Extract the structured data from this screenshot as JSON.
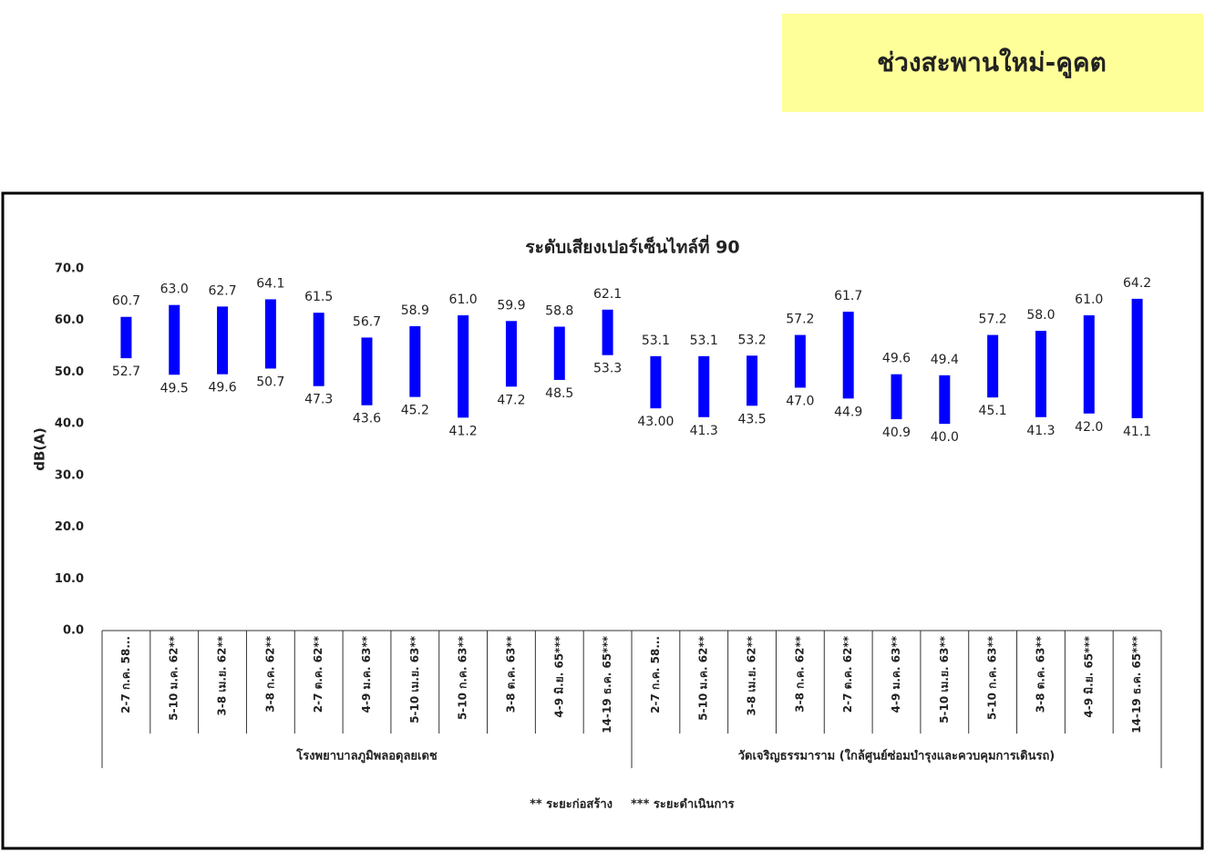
{
  "header": {
    "title": "ช่วงสะพานใหม่-คูคต"
  },
  "chart_data": {
    "type": "range_bar",
    "title": "ระดับเสียงเปอร์เซ็นไทล์ที่ 90",
    "y_label": "dB(A)",
    "categories": [
      "2-7 ก.ค. 58...",
      "5-10 ม.ค. 62**",
      "3-8 เม.ย. 62**",
      "3-8 ก.ค. 62**",
      "2-7 ต.ค. 62**",
      "4-9 ม.ค. 63**",
      "5-10 เม.ย. 63**",
      "5-10 ก.ค. 63**",
      "3-8 ต.ค. 63**",
      "4-9 มิ.ย. 65***",
      "14-19 ธ.ค. 65***",
      "2-7 ก.ค. 58...",
      "5-10 ม.ค. 62**",
      "3-8 เม.ย. 62**",
      "3-8 ก.ค. 62**",
      "2-7 ต.ค. 62**",
      "4-9 ม.ค. 63**",
      "5-10 เม.ย. 63**",
      "5-10 ก.ค. 63**",
      "3-8 ต.ค. 63**",
      "4-9 มิ.ย. 65***",
      "14-19 ธ.ค. 65***"
    ],
    "category_groups": [
      "โรงพยาบาลภูมิพลอดุลยเดช",
      "โรงพยาบาลภูมิพลอดุลยเดช",
      "โรงพยาบาลภูมิพลอดุลยเดช",
      "โรงพยาบาลภูมิพลอดุลยเดช",
      "โรงพยาบาลภูมิพลอดุลยเดช",
      "โรงพยาบาลภูมิพลอดุลยเดช",
      "โรงพยาบาลภูมิพลอดุลยเดช",
      "โรงพยาบาลภูมิพลอดุลยเดช",
      "โรงพยาบาลภูมิพลอดุลยเดช",
      "โรงพยาบาลภูมิพลอดุลยเดช",
      "โรงพยาบาลภูมิพลอดุลยเดช",
      "วัดเจริญธรรมาราม (ใกล้ศูนย์ซ่อมบำรุงและควบคุมการเดินรถ)",
      "วัดเจริญธรรมาราม (ใกล้ศูนย์ซ่อมบำรุงและควบคุมการเดินรถ)",
      "วัดเจริญธรรมาราม (ใกล้ศูนย์ซ่อมบำรุงและควบคุมการเดินรถ)",
      "วัดเจริญธรรมาราม (ใกล้ศูนย์ซ่อมบำรุงและควบคุมการเดินรถ)",
      "วัดเจริญธรรมาราม (ใกล้ศูนย์ซ่อมบำรุงและควบคุมการเดินรถ)",
      "วัดเจริญธรรมาราม (ใกล้ศูนย์ซ่อมบำรุงและควบคุมการเดินรถ)",
      "วัดเจริญธรรมาราม (ใกล้ศูนย์ซ่อมบำรุงและควบคุมการเดินรถ)",
      "วัดเจริญธรรมาราม (ใกล้ศูนย์ซ่อมบำรุงและควบคุมการเดินรถ)",
      "วัดเจริญธรรมาราม (ใกล้ศูนย์ซ่อมบำรุงและควบคุมการเดินรถ)",
      "วัดเจริญธรรมาราม (ใกล้ศูนย์ซ่อมบำรุงและควบคุมการเดินรถ)",
      "วัดเจริญธรรมาราม (ใกล้ศูนย์ซ่อมบำรุงและควบคุมการเดินรถ)"
    ],
    "series": [
      {
        "color": "#0000ff",
        "values": [
          60.7,
          63.0,
          62.7,
          64.1,
          61.5,
          56.7,
          58.9,
          61.0,
          59.9,
          58.8,
          62.1,
          53.1,
          53.1,
          53.2,
          57.2,
          61.7,
          49.6,
          49.4,
          57.2,
          58.0,
          61.0,
          64.2
        ],
        "value_labels": [
          "60.7",
          "63.0",
          "62.7",
          "64.1",
          "61.5",
          "56.7",
          "58.9",
          "61.0",
          "59.9",
          "58.8",
          "62.1",
          "53.1",
          "53.1",
          "53.2",
          "57.2",
          "61.7",
          "49.6",
          "49.4",
          "57.2",
          "58.0",
          "61.0",
          "64.2"
        ]
      },
      {
        "color": "#0000ff",
        "values": [
          52.7,
          49.5,
          49.6,
          50.7,
          47.3,
          43.6,
          45.2,
          41.2,
          47.2,
          48.5,
          53.3,
          43.0,
          41.3,
          43.5,
          47.0,
          44.9,
          40.9,
          40.0,
          45.1,
          41.3,
          42.0,
          41.1
        ],
        "value_labels": [
          "52.7",
          "49.5",
          "49.6",
          "50.7",
          "47.3",
          "43.6",
          "45.2",
          "41.2",
          "47.2",
          "48.5",
          "53.3",
          "43.00",
          "41.3",
          "43.5",
          "47.0",
          "44.9",
          "40.9",
          "40.0",
          "45.1",
          "41.3",
          "42.0",
          "41.1"
        ]
      }
    ],
    "ylim": [
      0,
      70
    ],
    "yticks": [
      {
        "value": 0,
        "label": "0.0"
      },
      {
        "value": 10,
        "label": "10.0"
      },
      {
        "value": 20,
        "label": "20.0"
      },
      {
        "value": 30,
        "label": "30.0"
      },
      {
        "value": 40,
        "label": "40.0"
      },
      {
        "value": 50,
        "label": "50.0"
      },
      {
        "value": 60,
        "label": "60.0"
      },
      {
        "value": 70,
        "label": "70.0"
      }
    ],
    "grid": false,
    "notes": [
      "** ระยะก่อสร้าง",
      "*** ระยะดำเนินการ"
    ]
  }
}
